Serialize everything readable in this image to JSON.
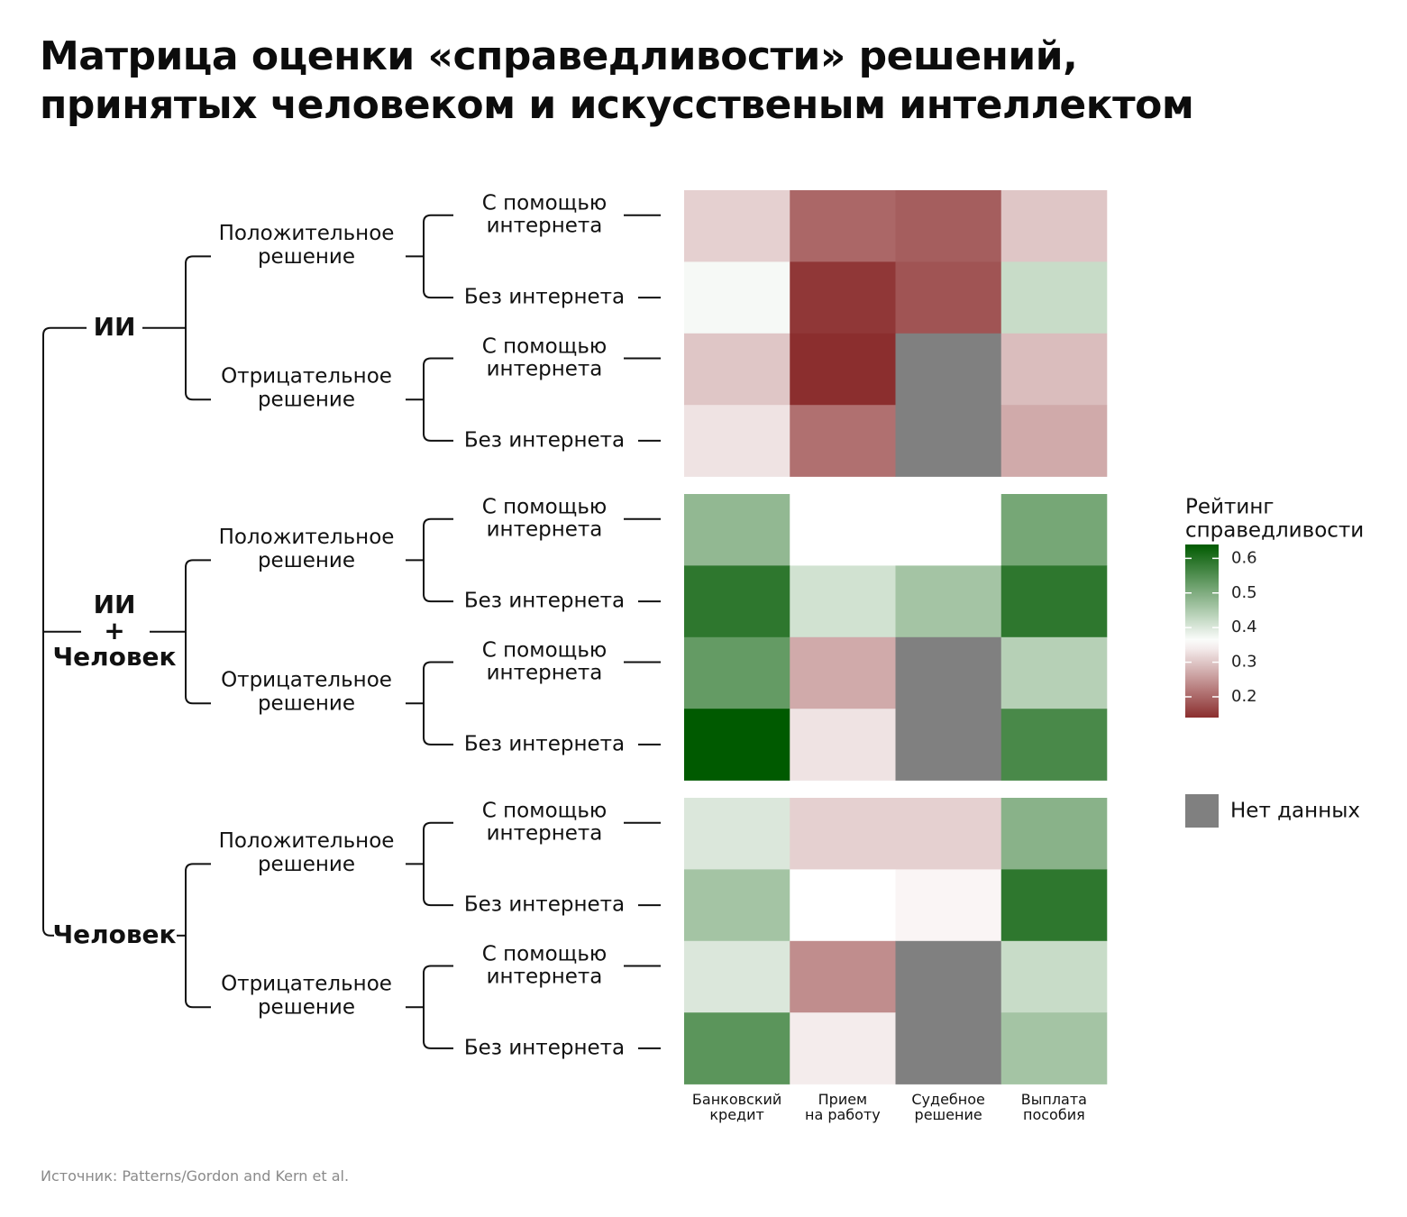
{
  "title": {
    "line1": "Матрица оценки «справедливости» решений,",
    "line2": "принятых человеком и искусственым интеллектом"
  },
  "source": "Источник: Patterns/Gordon and Kern et al.",
  "colors": {
    "low": "#8b2e2e",
    "mid": "#ffffff",
    "high": "#005a00",
    "na": "#808080"
  },
  "chart_data": {
    "type": "heatmap",
    "columns": [
      [
        "Банковский",
        "кредит"
      ],
      [
        "Прием",
        "на работу"
      ],
      [
        "Судебное",
        "решение"
      ],
      [
        "Выплата",
        "пособия"
      ]
    ],
    "groups": [
      {
        "label": [
          "ИИ"
        ],
        "decisions": [
          {
            "label": [
              "Положительное",
              "решение"
            ],
            "rows": [
              {
                "label": [
                  "С помощью",
                  "интернета"
                ],
                "values": [
                  0.31,
                  0.2,
                  0.19,
                  0.3
                ]
              },
              {
                "label": [
                  "Без интернета"
                ],
                "values": [
                  0.37,
                  0.15,
                  0.18,
                  0.42
                ]
              }
            ]
          },
          {
            "label": [
              "Отрицательное",
              "решение"
            ],
            "rows": [
              {
                "label": [
                  "С помощью",
                  "интернета"
                ],
                "values": [
                  0.3,
                  0.14,
                  null,
                  0.29
                ]
              },
              {
                "label": [
                  "Без интернета"
                ],
                "values": [
                  0.33,
                  0.21,
                  null,
                  0.27
                ]
              }
            ]
          }
        ]
      },
      {
        "label": [
          "ИИ",
          "+",
          "Человек"
        ],
        "decisions": [
          {
            "label": [
              "Положительное",
              "решение"
            ],
            "rows": [
              {
                "label": [
                  "С помощью",
                  "интернета"
                ],
                "values": [
                  0.48,
                  0.36,
                  0.36,
                  0.51
                ]
              },
              {
                "label": [
                  "Без интернета"
                ],
                "values": [
                  0.59,
                  0.41,
                  0.46,
                  0.59
                ]
              }
            ]
          },
          {
            "label": [
              "Отрицательное",
              "решение"
            ],
            "rows": [
              {
                "label": [
                  "С помощью",
                  "интернета"
                ],
                "values": [
                  0.53,
                  0.27,
                  null,
                  0.44
                ]
              },
              {
                "label": [
                  "Без интернета"
                ],
                "values": [
                  0.64,
                  0.33,
                  null,
                  0.56
                ]
              }
            ]
          }
        ]
      },
      {
        "label": [
          "Человек"
        ],
        "decisions": [
          {
            "label": [
              "Положительное",
              "решение"
            ],
            "rows": [
              {
                "label": [
                  "С помощью",
                  "интернета"
                ],
                "values": [
                  0.4,
                  0.31,
                  0.31,
                  0.49
                ]
              },
              {
                "label": [
                  "Без интернета"
                ],
                "values": [
                  0.46,
                  0.36,
                  0.35,
                  0.59
                ]
              }
            ]
          },
          {
            "label": [
              "Отрицательное",
              "решение"
            ],
            "rows": [
              {
                "label": [
                  "С помощью",
                  "интернета"
                ],
                "values": [
                  0.4,
                  0.24,
                  null,
                  0.42
                ]
              },
              {
                "label": [
                  "Без интернета"
                ],
                "values": [
                  0.54,
                  0.34,
                  null,
                  0.46
                ]
              }
            ]
          }
        ]
      }
    ],
    "scale": {
      "range": [
        0.14,
        0.64
      ],
      "midpoint": 0.36,
      "ticks": [
        0.2,
        0.3,
        0.4,
        0.5,
        0.6
      ]
    },
    "legend": {
      "title": [
        "Рейтинг",
        "справедливости"
      ],
      "na_label": "Нет данных",
      "position": "right"
    }
  }
}
